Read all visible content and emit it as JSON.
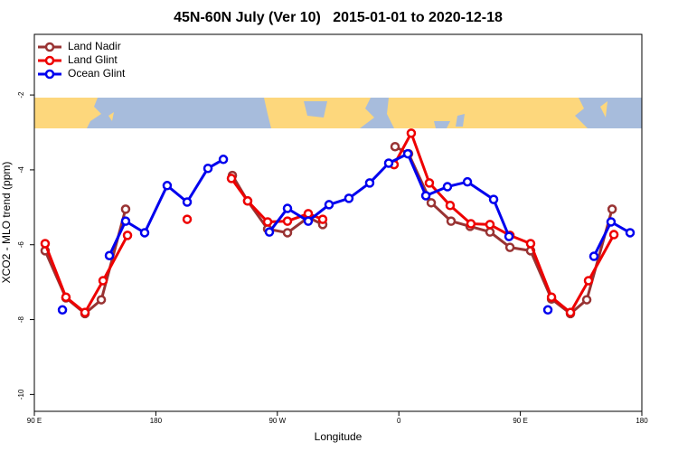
{
  "chart_data": {
    "type": "line",
    "title": "45N-60N July (Ver 10)   2015-01-01 to 2020-12-18",
    "xlabel": "Longitude",
    "ylabel": "XCO2 - MLO trend (ppm)",
    "xlim": [
      90,
      540
    ],
    "xticks": [
      {
        "value": 90,
        "label": "90 E"
      },
      180,
      {
        "value": 270,
        "label": "90 W"
      },
      {
        "value": 360,
        "label": "0"
      },
      {
        "value": 450,
        "label": "90 E"
      },
      {
        "value": 540,
        "label": "180"
      }
    ],
    "ylim": [
      -10.45,
      -0.38
    ],
    "yticks": [
      -10,
      -8,
      -6,
      -4,
      -2
    ],
    "legend": "topleft",
    "series": [
      {
        "name": "Land Nadir",
        "color": "#993333",
        "x": [
          98.0,
          113.4,
          127.5,
          139.6,
          157.6,
          null,
          236.7,
          248.0,
          262.8,
          277.5,
          292.9,
          303.6,
          null,
          357.2,
          367.2,
          384.0,
          398.7,
          412.8,
          427.5,
          442.3,
          457.6,
          473.1,
          487.1,
          499.2,
          518.0
        ],
        "values": [
          -6.16,
          -7.42,
          -7.84,
          -7.47,
          -5.05,
          null,
          -4.15,
          -4.83,
          -5.58,
          -5.68,
          -5.27,
          -5.46,
          null,
          -3.38,
          -3.57,
          -4.88,
          -5.37,
          -5.51,
          -5.66,
          -6.07,
          -6.16,
          -7.45,
          -7.84,
          -7.47,
          -5.05
        ]
      },
      {
        "name": "Land Glint",
        "color": "#ee0000",
        "x": [
          98.0,
          113.4,
          127.5,
          140.9,
          159.0,
          null,
          203.2,
          null,
          236.0,
          248.0,
          262.8,
          277.5,
          292.9,
          303.6,
          null,
          356.5,
          369.2,
          382.6,
          398.0,
          413.4,
          427.5,
          442.3,
          457.6,
          473.1,
          487.1,
          500.5,
          519.3
        ],
        "values": [
          -5.97,
          -7.4,
          -7.81,
          -6.96,
          -5.75,
          null,
          -5.32,
          null,
          -4.23,
          -4.83,
          -5.39,
          -5.37,
          -5.17,
          -5.32,
          null,
          -3.86,
          -3.02,
          -4.35,
          -4.95,
          -5.44,
          -5.46,
          -5.75,
          -5.97,
          -7.4,
          -7.81,
          -6.96,
          -5.73
        ]
      },
      {
        "name": "Ocean Glint",
        "color": "#0000ee",
        "x": [
          110.8,
          null,
          145.6,
          157.6,
          171.7,
          188.4,
          203.2,
          218.6,
          230.0,
          null,
          264.1,
          277.5,
          292.9,
          308.3,
          323.0,
          338.4,
          352.5,
          366.6,
          380.0,
          396.0,
          410.8,
          430.2,
          441.6,
          null,
          470.4,
          null,
          504.5,
          517.2,
          531.3
        ],
        "values": [
          -7.74,
          null,
          -6.29,
          -5.37,
          -5.68,
          -4.42,
          -4.86,
          -3.96,
          -3.72,
          null,
          -5.66,
          -5.03,
          -5.37,
          -4.93,
          -4.76,
          -4.35,
          -3.82,
          -3.57,
          -4.69,
          -4.45,
          -4.32,
          -4.79,
          -5.78,
          null,
          -7.74,
          null,
          -6.31,
          -5.39,
          -5.68
        ]
      }
    ]
  }
}
